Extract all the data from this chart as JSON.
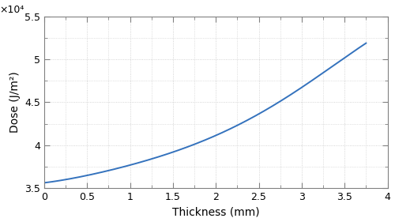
{
  "xlabel": "Thickness (mm)",
  "ylabel_display": "Dose (J/m²)",
  "x_lim": [
    0,
    4
  ],
  "y_lim": [
    3.5,
    5.5
  ],
  "line_color": "#3472BD",
  "line_width": 1.4,
  "grid_color": "#C8C8C8",
  "background_color": "#FFFFFF",
  "fig_background": "#FFFFFF",
  "spine_color": "#808080",
  "exponent_label": "×10⁴",
  "x_ticks": [
    0,
    0.5,
    1.0,
    1.5,
    2.0,
    2.5,
    3.0,
    3.5,
    4.0
  ],
  "x_tick_labels": [
    "0",
    "0.5",
    "1",
    "1.5",
    "2",
    "2.5",
    "3",
    "3.5",
    "4"
  ],
  "y_ticks": [
    3.5,
    4.0,
    4.5,
    5.0,
    5.5
  ],
  "y_tick_labels": [
    "3.5",
    "4",
    "4.5",
    "5",
    "5.5"
  ],
  "x_pts": [
    0.0,
    0.3,
    0.6,
    0.9,
    1.2,
    1.5,
    1.8,
    2.1,
    2.4,
    2.7,
    3.0,
    3.2,
    3.4,
    3.6,
    3.75
  ],
  "y_pts": [
    35600,
    36100,
    36700,
    37400,
    38200,
    39200,
    40300,
    41600,
    43100,
    44800,
    46700,
    48000,
    49500,
    51000,
    51800
  ],
  "scale_factor": 10000
}
